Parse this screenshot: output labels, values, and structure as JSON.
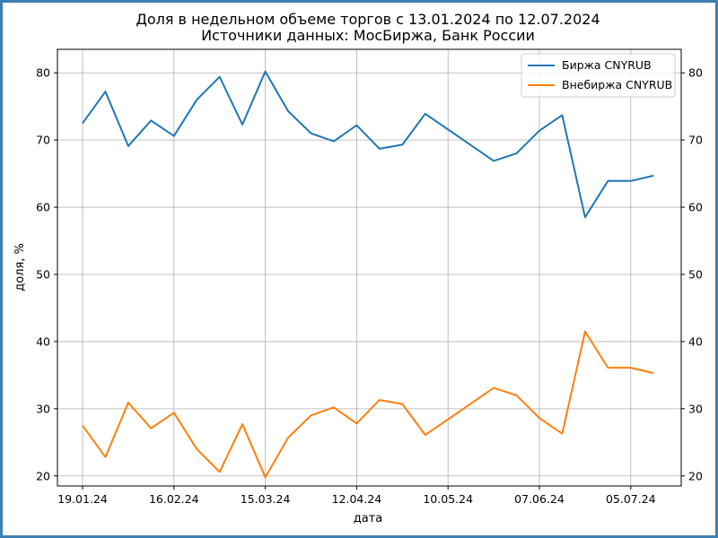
{
  "chart_data": {
    "type": "line",
    "title": "Доля в недельном объеме торгов с 13.01.2024 по 12.07.2024",
    "subtitle": "Источники данных: МосБиржа, Банк России",
    "xlabel": "дата",
    "ylabel": "доля, %",
    "ylim": [
      18.5,
      83.5
    ],
    "yticks": [
      20,
      30,
      40,
      50,
      60,
      70,
      80
    ],
    "x_tick_labels": [
      "19.01.24",
      "16.02.24",
      "15.03.24",
      "12.04.24",
      "10.05.24",
      "07.06.24",
      "05.07.24"
    ],
    "x_tick_indices": [
      0,
      4,
      8,
      12,
      16,
      20,
      24
    ],
    "grid": true,
    "legend_position": "top-right",
    "series": [
      {
        "name": "Биржа CNYRUB",
        "color": "#1f77b4",
        "values": [
          72.5,
          77.2,
          69.1,
          72.9,
          70.6,
          76.0,
          79.4,
          72.3,
          80.2,
          74.3,
          71.0,
          69.8,
          72.2,
          68.7,
          69.3,
          73.9,
          null,
          null,
          66.9,
          68.0,
          71.4,
          73.7,
          58.5,
          63.9,
          63.9,
          64.7
        ]
      },
      {
        "name": "Внебиржа CNYRUB",
        "color": "#ff7f0e",
        "values": [
          27.5,
          22.8,
          30.9,
          27.1,
          29.4,
          24.0,
          20.6,
          27.7,
          19.8,
          25.7,
          29.0,
          30.2,
          27.8,
          31.3,
          30.7,
          26.1,
          null,
          null,
          33.1,
          32.0,
          28.6,
          26.3,
          41.5,
          36.1,
          36.1,
          35.3
        ]
      }
    ]
  }
}
